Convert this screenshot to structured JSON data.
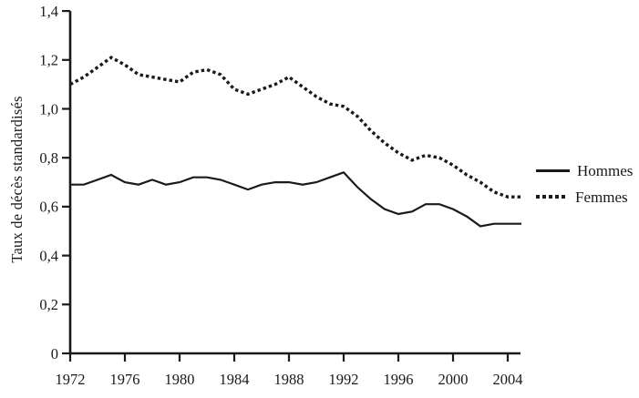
{
  "chart_data": {
    "type": "line",
    "ylabel": "Taux de décès standardisés",
    "xlabel": "",
    "x": [
      1972,
      1973,
      1974,
      1975,
      1976,
      1977,
      1978,
      1979,
      1980,
      1981,
      1982,
      1983,
      1984,
      1985,
      1986,
      1987,
      1988,
      1989,
      1990,
      1991,
      1992,
      1993,
      1994,
      1995,
      1996,
      1997,
      1998,
      1999,
      2000,
      2001,
      2002,
      2003,
      2004,
      2005
    ],
    "series": [
      {
        "name": "Hommes",
        "style": "solid",
        "values": [
          0.69,
          0.69,
          0.71,
          0.73,
          0.7,
          0.69,
          0.71,
          0.69,
          0.7,
          0.72,
          0.72,
          0.71,
          0.69,
          0.67,
          0.69,
          0.7,
          0.7,
          0.69,
          0.7,
          0.72,
          0.74,
          0.68,
          0.63,
          0.59,
          0.57,
          0.58,
          0.61,
          0.61,
          0.59,
          0.56,
          0.52,
          0.53,
          0.53,
          0.53
        ]
      },
      {
        "name": "Femmes",
        "style": "dotted",
        "values": [
          1.1,
          1.13,
          1.17,
          1.21,
          1.18,
          1.14,
          1.13,
          1.12,
          1.11,
          1.15,
          1.16,
          1.14,
          1.08,
          1.06,
          1.08,
          1.1,
          1.13,
          1.09,
          1.05,
          1.02,
          1.01,
          0.97,
          0.91,
          0.86,
          0.82,
          0.79,
          0.81,
          0.8,
          0.77,
          0.73,
          0.7,
          0.66,
          0.64,
          0.64
        ]
      }
    ],
    "x_ticks": [
      1972,
      1976,
      1980,
      1984,
      1988,
      1992,
      1996,
      2000,
      2004
    ],
    "x_tick_labels": [
      "1972",
      "1976",
      "1980",
      "1984",
      "1988",
      "1992",
      "1996",
      "2000",
      "2004"
    ],
    "y_ticks": [
      0,
      0.2,
      0.4,
      0.6,
      0.8,
      1.0,
      1.2,
      1.4
    ],
    "y_tick_labels": [
      "0",
      "0,2",
      "0,4",
      "0,6",
      "0,8",
      "1,0",
      "1,2",
      "1,4"
    ],
    "ylim": [
      0,
      1.4
    ],
    "grid": false,
    "legend_position": "right",
    "line_color": "#1a1a1a",
    "background_color": "#ffffff"
  }
}
